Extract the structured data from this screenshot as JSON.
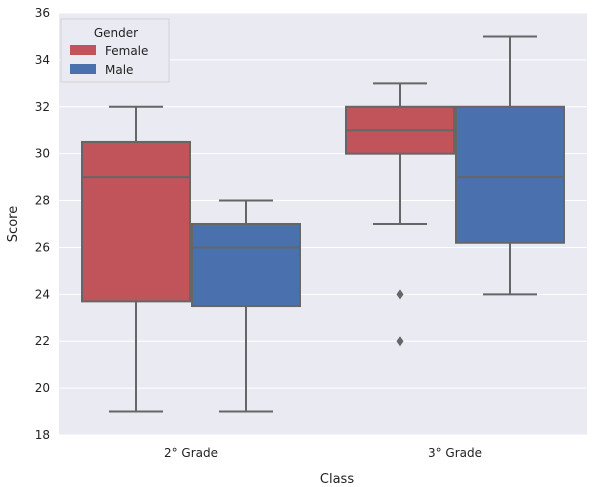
{
  "chart_data": {
    "type": "box",
    "title": "",
    "xlabel": "Class",
    "ylabel": "Score",
    "ylim": [
      18,
      36
    ],
    "yticks": [
      18,
      20,
      22,
      24,
      26,
      28,
      30,
      32,
      34,
      36
    ],
    "categories": [
      "2° Grade",
      "3° Grade"
    ],
    "grid": true,
    "legend": {
      "title": "Gender",
      "placement": "top-left"
    },
    "series": [
      {
        "name": "Female",
        "color": "#c0545a",
        "boxes": [
          {
            "whisker_low": 19,
            "q1": 23.7,
            "median": 29,
            "q3": 30.5,
            "whisker_high": 32,
            "outliers": []
          },
          {
            "whisker_low": 27,
            "q1": 30,
            "median": 31,
            "q3": 32,
            "whisker_high": 33,
            "outliers": [
              24,
              22
            ]
          }
        ]
      },
      {
        "name": "Male",
        "color": "#4a71ad",
        "boxes": [
          {
            "whisker_low": 19,
            "q1": 23.5,
            "median": 26,
            "q3": 27,
            "whisker_high": 28,
            "outliers": []
          },
          {
            "whisker_low": 24,
            "q1": 26.2,
            "median": 29,
            "q3": 32,
            "whisker_high": 35,
            "outliers": []
          }
        ]
      }
    ]
  }
}
